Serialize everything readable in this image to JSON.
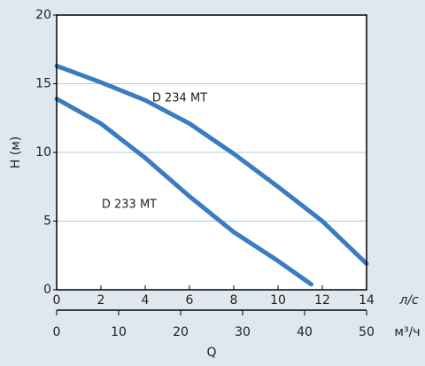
{
  "chart_data": {
    "type": "line",
    "ylabel": "H (м)",
    "xlabel": "Q",
    "x_unit": "л/с",
    "x2_unit": "м³/ч",
    "xlim": [
      0,
      14
    ],
    "xticks": [
      0,
      2,
      4,
      6,
      8,
      10,
      12,
      14
    ],
    "x2lim": [
      0,
      50
    ],
    "x2ticks": [
      0,
      10,
      20,
      30,
      40,
      50
    ],
    "ylim": [
      0,
      20
    ],
    "yticks": [
      0,
      5,
      10,
      15,
      20
    ],
    "grid": true,
    "series": [
      {
        "name": "D 234 MT",
        "color": "#3b7cc0",
        "x": [
          0,
          2,
          4,
          6,
          8,
          10,
          12,
          14
        ],
        "values": [
          16.3,
          15.1,
          13.8,
          12.1,
          9.9,
          7.5,
          5.0,
          1.9
        ]
      },
      {
        "name": "D 233 MT",
        "color": "#3b7cc0",
        "x": [
          0,
          2,
          4,
          6,
          8,
          10,
          11.5
        ],
        "values": [
          13.9,
          12.1,
          9.6,
          6.8,
          4.2,
          2.1,
          0.4
        ]
      }
    ]
  }
}
